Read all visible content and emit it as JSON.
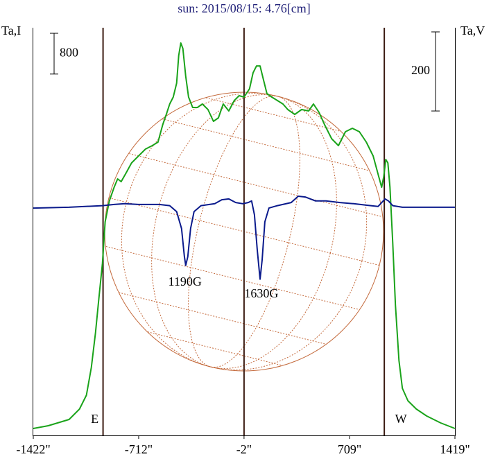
{
  "chart_data": {
    "type": "line",
    "title": "sun: 2015/08/15: 4.76[cm]",
    "ylabel": "Ta,I",
    "y2label": "Ta,V",
    "xlim": [
      -1422,
      1419
    ],
    "xticks": [
      {
        "value": -1422,
        "label": "-1422\""
      },
      {
        "value": -712,
        "label": "-712\""
      },
      {
        "value": -2,
        "label": "-2\""
      },
      {
        "value": 709,
        "label": "709\""
      },
      {
        "value": 1419,
        "label": "1419\""
      }
    ],
    "ylim": [
      0,
      8000
    ],
    "y2lim": [
      -577,
      454
    ],
    "scale_bars": [
      {
        "value": 800,
        "axis": "y"
      },
      {
        "value": 200,
        "axis": "y2"
      }
    ],
    "limb_lines": [
      -952,
      -2,
      943
    ],
    "limb_labels": [
      "E",
      "W"
    ],
    "annotations": [
      {
        "text": "1190G",
        "x": -400
      },
      {
        "text": "1630G",
        "x": 115
      }
    ],
    "series": [
      {
        "name": "Ta,I",
        "color": "#1aa31a",
        "x": [
          -1422,
          -1321,
          -1181,
          -1111,
          -1064,
          -1031,
          -1003,
          -980,
          -956,
          -938,
          -910,
          -877,
          -854,
          -830,
          -798,
          -760,
          -713,
          -666,
          -620,
          -582,
          -550,
          -526,
          -503,
          -479,
          -456,
          -442,
          -428,
          -414,
          -395,
          -376,
          -348,
          -316,
          -283,
          -245,
          -208,
          -175,
          -142,
          -105,
          -68,
          -35,
          -2,
          35,
          59,
          82,
          106,
          129,
          152,
          185,
          223,
          260,
          293,
          340,
          386,
          433,
          466,
          503,
          541,
          588,
          634,
          681,
          728,
          775,
          822,
          868,
          906,
          925,
          939,
          953,
          967,
          981,
          1000,
          1018,
          1042,
          1065,
          1102,
          1159,
          1229,
          1323,
          1419
        ],
        "values": [
          136,
          190,
          313,
          517,
          789,
          1333,
          2014,
          2694,
          3374,
          4190,
          4599,
          4871,
          5034,
          4979,
          5143,
          5347,
          5483,
          5619,
          5687,
          5755,
          6095,
          6299,
          6503,
          6639,
          6911,
          7456,
          7700,
          7592,
          7047,
          6639,
          6435,
          6435,
          6503,
          6394,
          6163,
          6231,
          6503,
          6367,
          6571,
          6666,
          6639,
          6802,
          7115,
          7251,
          7251,
          6979,
          6707,
          6639,
          6571,
          6503,
          6394,
          6299,
          6394,
          6367,
          6503,
          6340,
          6095,
          5823,
          5687,
          5959,
          6027,
          5959,
          5755,
          5483,
          5075,
          4871,
          5075,
          5415,
          5347,
          4871,
          3782,
          2558,
          1469,
          925,
          680,
          517,
          381,
          245,
          136
        ]
      },
      {
        "name": "Ta,V",
        "color": "#0a1a8c",
        "axis": "y2",
        "x": [
          -1422,
          -1181,
          -956,
          -877,
          -807,
          -713,
          -573,
          -503,
          -456,
          -423,
          -404,
          -395,
          -381,
          -362,
          -339,
          -292,
          -199,
          -152,
          -105,
          -58,
          -11,
          26,
          49,
          68,
          87,
          106,
          120,
          138,
          166,
          223,
          316,
          363,
          410,
          480,
          550,
          644,
          737,
          831,
          901,
          948,
          971,
          1000,
          1065,
          1419
        ],
        "values": [
          -2,
          0,
          4,
          7,
          9,
          7,
          7,
          4,
          -11,
          -54,
          -125,
          -147,
          -125,
          -54,
          -11,
          4,
          9,
          19,
          21,
          12,
          9,
          12,
          16,
          -19,
          -107,
          -182,
          -133,
          -37,
          -2,
          4,
          12,
          28,
          26,
          16,
          16,
          12,
          9,
          5,
          2,
          21,
          16,
          4,
          0,
          0
        ]
      }
    ]
  }
}
